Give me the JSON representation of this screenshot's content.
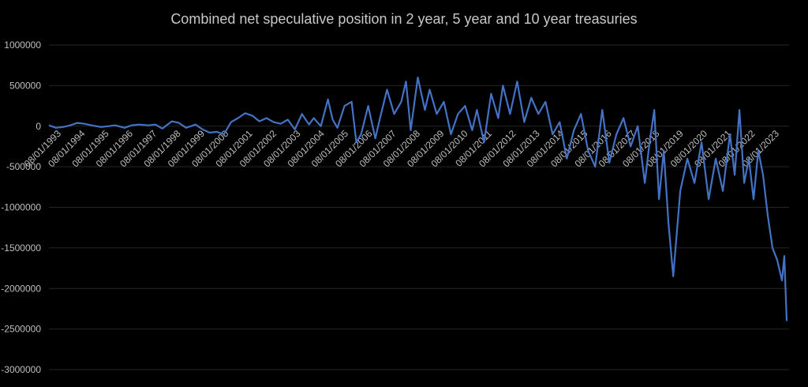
{
  "chart_data": {
    "type": "line",
    "title": "Combined net speculative position in 2 year, 5 year and 10 year treasuries",
    "xlabel": "",
    "ylabel": "",
    "ylim": [
      -3000000,
      1000000
    ],
    "y_ticks": [
      1000000,
      500000,
      0,
      -500000,
      -1000000,
      -1500000,
      -2000000,
      -2500000,
      -3000000
    ],
    "y_tick_labels": [
      "1000000",
      "500000",
      "0",
      "-500000",
      "-1000000",
      "-1500000",
      "-2000000",
      "-2500000",
      "-3000000"
    ],
    "x_tick_labels": [
      "08/01/1993",
      "08/01/1994",
      "08/01/1995",
      "08/01/1996",
      "08/01/1997",
      "08/01/1998",
      "08/01/1999",
      "08/01/2000",
      "08/01/2001",
      "08/01/2002",
      "08/01/2003",
      "08/01/2004",
      "08/01/2005",
      "08/01/2006",
      "08/01/2007",
      "08/01/2008",
      "08/01/2009",
      "08/01/2010",
      "08/01/2011",
      "08/01/2012",
      "08/01/2013",
      "08/01/2014",
      "08/01/2015",
      "08/01/2016",
      "08/01/2017",
      "08/01/2018",
      "08/01/2019",
      "08/01/2020",
      "08/01/2021",
      "08/01/2022",
      "08/01/2023"
    ],
    "grid": true,
    "legend": "none",
    "line_color": "#4472C4",
    "x_start": "1993.0",
    "x_end": "2024.3",
    "series": [
      {
        "x": [
          1993.0,
          1993.3,
          1993.6,
          1993.9,
          1994.2,
          1994.5,
          1994.8,
          1995.2,
          1995.5,
          1995.8,
          1996.2,
          1996.5,
          1996.8,
          1997.2,
          1997.5,
          1997.8,
          1998.2,
          1998.5,
          1998.8,
          1999.2,
          1999.5,
          1999.8,
          2000.1,
          2000.4,
          2000.7,
          2001.0,
          2001.3,
          2001.6,
          2001.9,
          2002.2,
          2002.5,
          2002.8,
          2003.1,
          2003.4,
          2003.7,
          2004.0,
          2004.2,
          2004.5,
          2004.8,
          2005.0,
          2005.2,
          2005.5,
          2005.8,
          2006.0,
          2006.2,
          2006.5,
          2006.8,
          2007.0,
          2007.3,
          2007.6,
          2007.9,
          2008.1,
          2008.3,
          2008.6,
          2008.9,
          2009.1,
          2009.4,
          2009.7,
          2010.0,
          2010.3,
          2010.6,
          2010.9,
          2011.1,
          2011.4,
          2011.7,
          2012.0,
          2012.2,
          2012.5,
          2012.8,
          2013.1,
          2013.4,
          2013.7,
          2014.0,
          2014.3,
          2014.6,
          2014.9,
          2015.2,
          2015.5,
          2015.8,
          2016.1,
          2016.4,
          2016.7,
          2017.0,
          2017.3,
          2017.6,
          2017.9,
          2018.2,
          2018.4,
          2018.6,
          2018.8,
          2019.0,
          2019.2,
          2019.4,
          2019.7,
          2020.0,
          2020.3,
          2020.6,
          2020.9,
          2021.2,
          2021.5,
          2021.8,
          2022.0,
          2022.2,
          2022.4,
          2022.6,
          2022.8,
          2023.0,
          2023.2,
          2023.4,
          2023.6,
          2023.8,
          2024.0,
          2024.1,
          2024.2
        ],
        "y": [
          10000,
          -20000,
          -10000,
          10000,
          40000,
          30000,
          10000,
          -10000,
          0,
          10000,
          -20000,
          10000,
          20000,
          10000,
          20000,
          -30000,
          60000,
          40000,
          -20000,
          20000,
          -40000,
          -80000,
          -70000,
          -100000,
          50000,
          100000,
          160000,
          130000,
          60000,
          100000,
          50000,
          30000,
          80000,
          -40000,
          150000,
          20000,
          100000,
          0,
          330000,
          80000,
          -20000,
          250000,
          300000,
          -200000,
          -100000,
          250000,
          -150000,
          100000,
          450000,
          150000,
          300000,
          550000,
          -50000,
          600000,
          200000,
          450000,
          150000,
          300000,
          -100000,
          150000,
          250000,
          -50000,
          200000,
          -200000,
          400000,
          100000,
          500000,
          150000,
          550000,
          50000,
          350000,
          150000,
          300000,
          -100000,
          50000,
          -400000,
          -50000,
          150000,
          -300000,
          -500000,
          200000,
          -450000,
          -100000,
          100000,
          -250000,
          0,
          -700000,
          -200000,
          200000,
          -900000,
          -300000,
          -1200000,
          -1850000,
          -800000,
          -400000,
          -700000,
          -200000,
          -900000,
          -400000,
          -800000,
          -100000,
          -600000,
          200000,
          -700000,
          -400000,
          -900000,
          -300000,
          -600000,
          -1100000,
          -1500000,
          -1650000,
          -1900000,
          -1600000,
          -2400000
        ]
      }
    ]
  }
}
